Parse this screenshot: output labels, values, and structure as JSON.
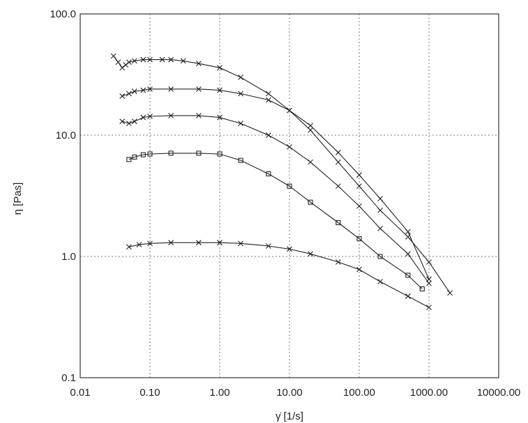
{
  "chart_data": {
    "type": "scatter",
    "title": "",
    "xlabel": "γ̇ [1/s]",
    "ylabel": "η [Pas]",
    "x_scale": "log",
    "y_scale": "log",
    "xlim": [
      0.01,
      10000
    ],
    "ylim": [
      0.1,
      100
    ],
    "grid": true,
    "x_ticks": [
      0.01,
      0.1,
      1,
      10,
      100,
      1000,
      10000
    ],
    "x_tick_labels": [
      "0.01",
      "0.10",
      "1.00",
      "10.00",
      "100.00",
      "1000.00",
      "10000.00"
    ],
    "y_ticks": [
      0.1,
      1,
      10,
      100
    ],
    "y_tick_labels": [
      "0.1",
      "1.0",
      "10.0",
      "100.0"
    ],
    "series": [
      {
        "marker": "x",
        "points": [
          [
            0.03,
            45
          ],
          [
            0.035,
            40
          ],
          [
            0.04,
            36
          ],
          [
            0.045,
            38
          ],
          [
            0.05,
            40
          ],
          [
            0.06,
            41
          ],
          [
            0.08,
            42
          ],
          [
            0.1,
            42
          ],
          [
            0.15,
            42
          ],
          [
            0.2,
            42
          ],
          [
            0.3,
            41
          ],
          [
            0.5,
            39
          ],
          [
            1,
            36
          ],
          [
            2,
            30
          ],
          [
            5,
            22
          ],
          [
            10,
            16
          ],
          [
            20,
            11
          ],
          [
            50,
            6
          ],
          [
            100,
            3.8
          ],
          [
            200,
            2.4
          ],
          [
            500,
            1.45
          ],
          [
            1000,
            0.9
          ],
          [
            2000,
            0.5
          ]
        ]
      },
      {
        "marker": "x",
        "points": [
          [
            0.04,
            21
          ],
          [
            0.05,
            22
          ],
          [
            0.06,
            23
          ],
          [
            0.08,
            23.5
          ],
          [
            0.1,
            24
          ],
          [
            0.2,
            24
          ],
          [
            0.5,
            24
          ],
          [
            1,
            23.5
          ],
          [
            2,
            22
          ],
          [
            5,
            19.5
          ],
          [
            10,
            16
          ],
          [
            20,
            12
          ],
          [
            50,
            7.2
          ],
          [
            100,
            4.7
          ],
          [
            200,
            3
          ],
          [
            500,
            1.6
          ],
          [
            1000,
            0.65
          ]
        ]
      },
      {
        "marker": "x",
        "points": [
          [
            0.04,
            13
          ],
          [
            0.05,
            12.5
          ],
          [
            0.06,
            13
          ],
          [
            0.08,
            14
          ],
          [
            0.1,
            14.3
          ],
          [
            0.2,
            14.5
          ],
          [
            0.5,
            14.5
          ],
          [
            1,
            14
          ],
          [
            2,
            12.5
          ],
          [
            5,
            10
          ],
          [
            10,
            8
          ],
          [
            20,
            6
          ],
          [
            50,
            3.8
          ],
          [
            100,
            2.6
          ],
          [
            200,
            1.7
          ],
          [
            500,
            1.05
          ],
          [
            1000,
            0.6
          ]
        ]
      },
      {
        "marker": "square",
        "points": [
          [
            0.05,
            6.3
          ],
          [
            0.06,
            6.6
          ],
          [
            0.08,
            6.9
          ],
          [
            0.1,
            7
          ],
          [
            0.2,
            7.1
          ],
          [
            0.5,
            7.1
          ],
          [
            1,
            7
          ],
          [
            2,
            6.2
          ],
          [
            5,
            4.8
          ],
          [
            10,
            3.8
          ],
          [
            20,
            2.8
          ],
          [
            50,
            1.9
          ],
          [
            100,
            1.4
          ],
          [
            200,
            1
          ],
          [
            500,
            0.7
          ],
          [
            800,
            0.54
          ]
        ]
      },
      {
        "marker": "x",
        "points": [
          [
            0.05,
            1.2
          ],
          [
            0.07,
            1.25
          ],
          [
            0.1,
            1.28
          ],
          [
            0.2,
            1.3
          ],
          [
            0.5,
            1.3
          ],
          [
            1,
            1.3
          ],
          [
            2,
            1.28
          ],
          [
            5,
            1.22
          ],
          [
            10,
            1.15
          ],
          [
            20,
            1.05
          ],
          [
            50,
            0.9
          ],
          [
            100,
            0.78
          ],
          [
            200,
            0.62
          ],
          [
            500,
            0.47
          ],
          [
            1000,
            0.38
          ]
        ]
      }
    ]
  }
}
